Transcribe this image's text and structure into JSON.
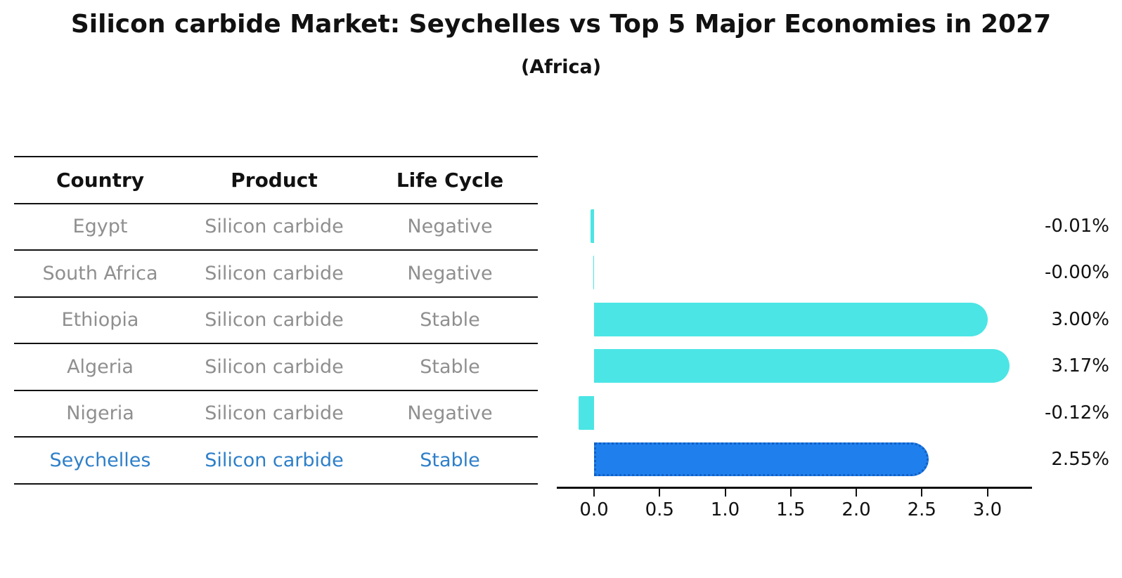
{
  "title": "Silicon carbide Market: Seychelles vs Top 5 Major Economies in 2027",
  "subtitle": "(Africa)",
  "table": {
    "headers": [
      "Country",
      "Product",
      "Life Cycle"
    ],
    "rows": [
      {
        "country": "Egypt",
        "product": "Silicon carbide",
        "life_cycle": "Negative",
        "highlight": false
      },
      {
        "country": "South Africa",
        "product": "Silicon carbide",
        "life_cycle": "Negative",
        "highlight": false
      },
      {
        "country": "Ethiopia",
        "product": "Silicon carbide",
        "life_cycle": "Stable",
        "highlight": false
      },
      {
        "country": "Algeria",
        "product": "Silicon carbide",
        "life_cycle": "Stable",
        "highlight": false
      },
      {
        "country": "Nigeria",
        "product": "Silicon carbide",
        "life_cycle": "Negative",
        "highlight": false
      },
      {
        "country": "Seychelles",
        "product": "Silicon carbide",
        "life_cycle": "Stable",
        "highlight": true
      }
    ]
  },
  "chart_data": {
    "type": "bar",
    "orientation": "horizontal",
    "title": "Silicon carbide Market: Seychelles vs Top 5 Major Economies in 2027",
    "subtitle": "(Africa)",
    "categories": [
      "Egypt",
      "South Africa",
      "Ethiopia",
      "Algeria",
      "Nigeria",
      "Seychelles"
    ],
    "values": [
      -0.01,
      -0.002,
      3.0,
      3.17,
      -0.12,
      2.55
    ],
    "value_labels": [
      "-0.01%",
      "-0.00%",
      "3.00%",
      "3.17%",
      "-0.12%",
      "2.55%"
    ],
    "x_ticks": [
      "0.0",
      "0.5",
      "1.0",
      "1.5",
      "2.0",
      "2.5",
      "3.0"
    ],
    "xlim": [
      -0.28,
      3.34
    ],
    "grid": false,
    "legend": "none",
    "highlight_index": 5,
    "colors": {
      "bar_default": "#4ce5e5",
      "bar_highlight": "#1f80ed",
      "highlight_text": "#2e7fc9",
      "table_text": "#8f8f8f",
      "axis_text": "#111111"
    }
  }
}
